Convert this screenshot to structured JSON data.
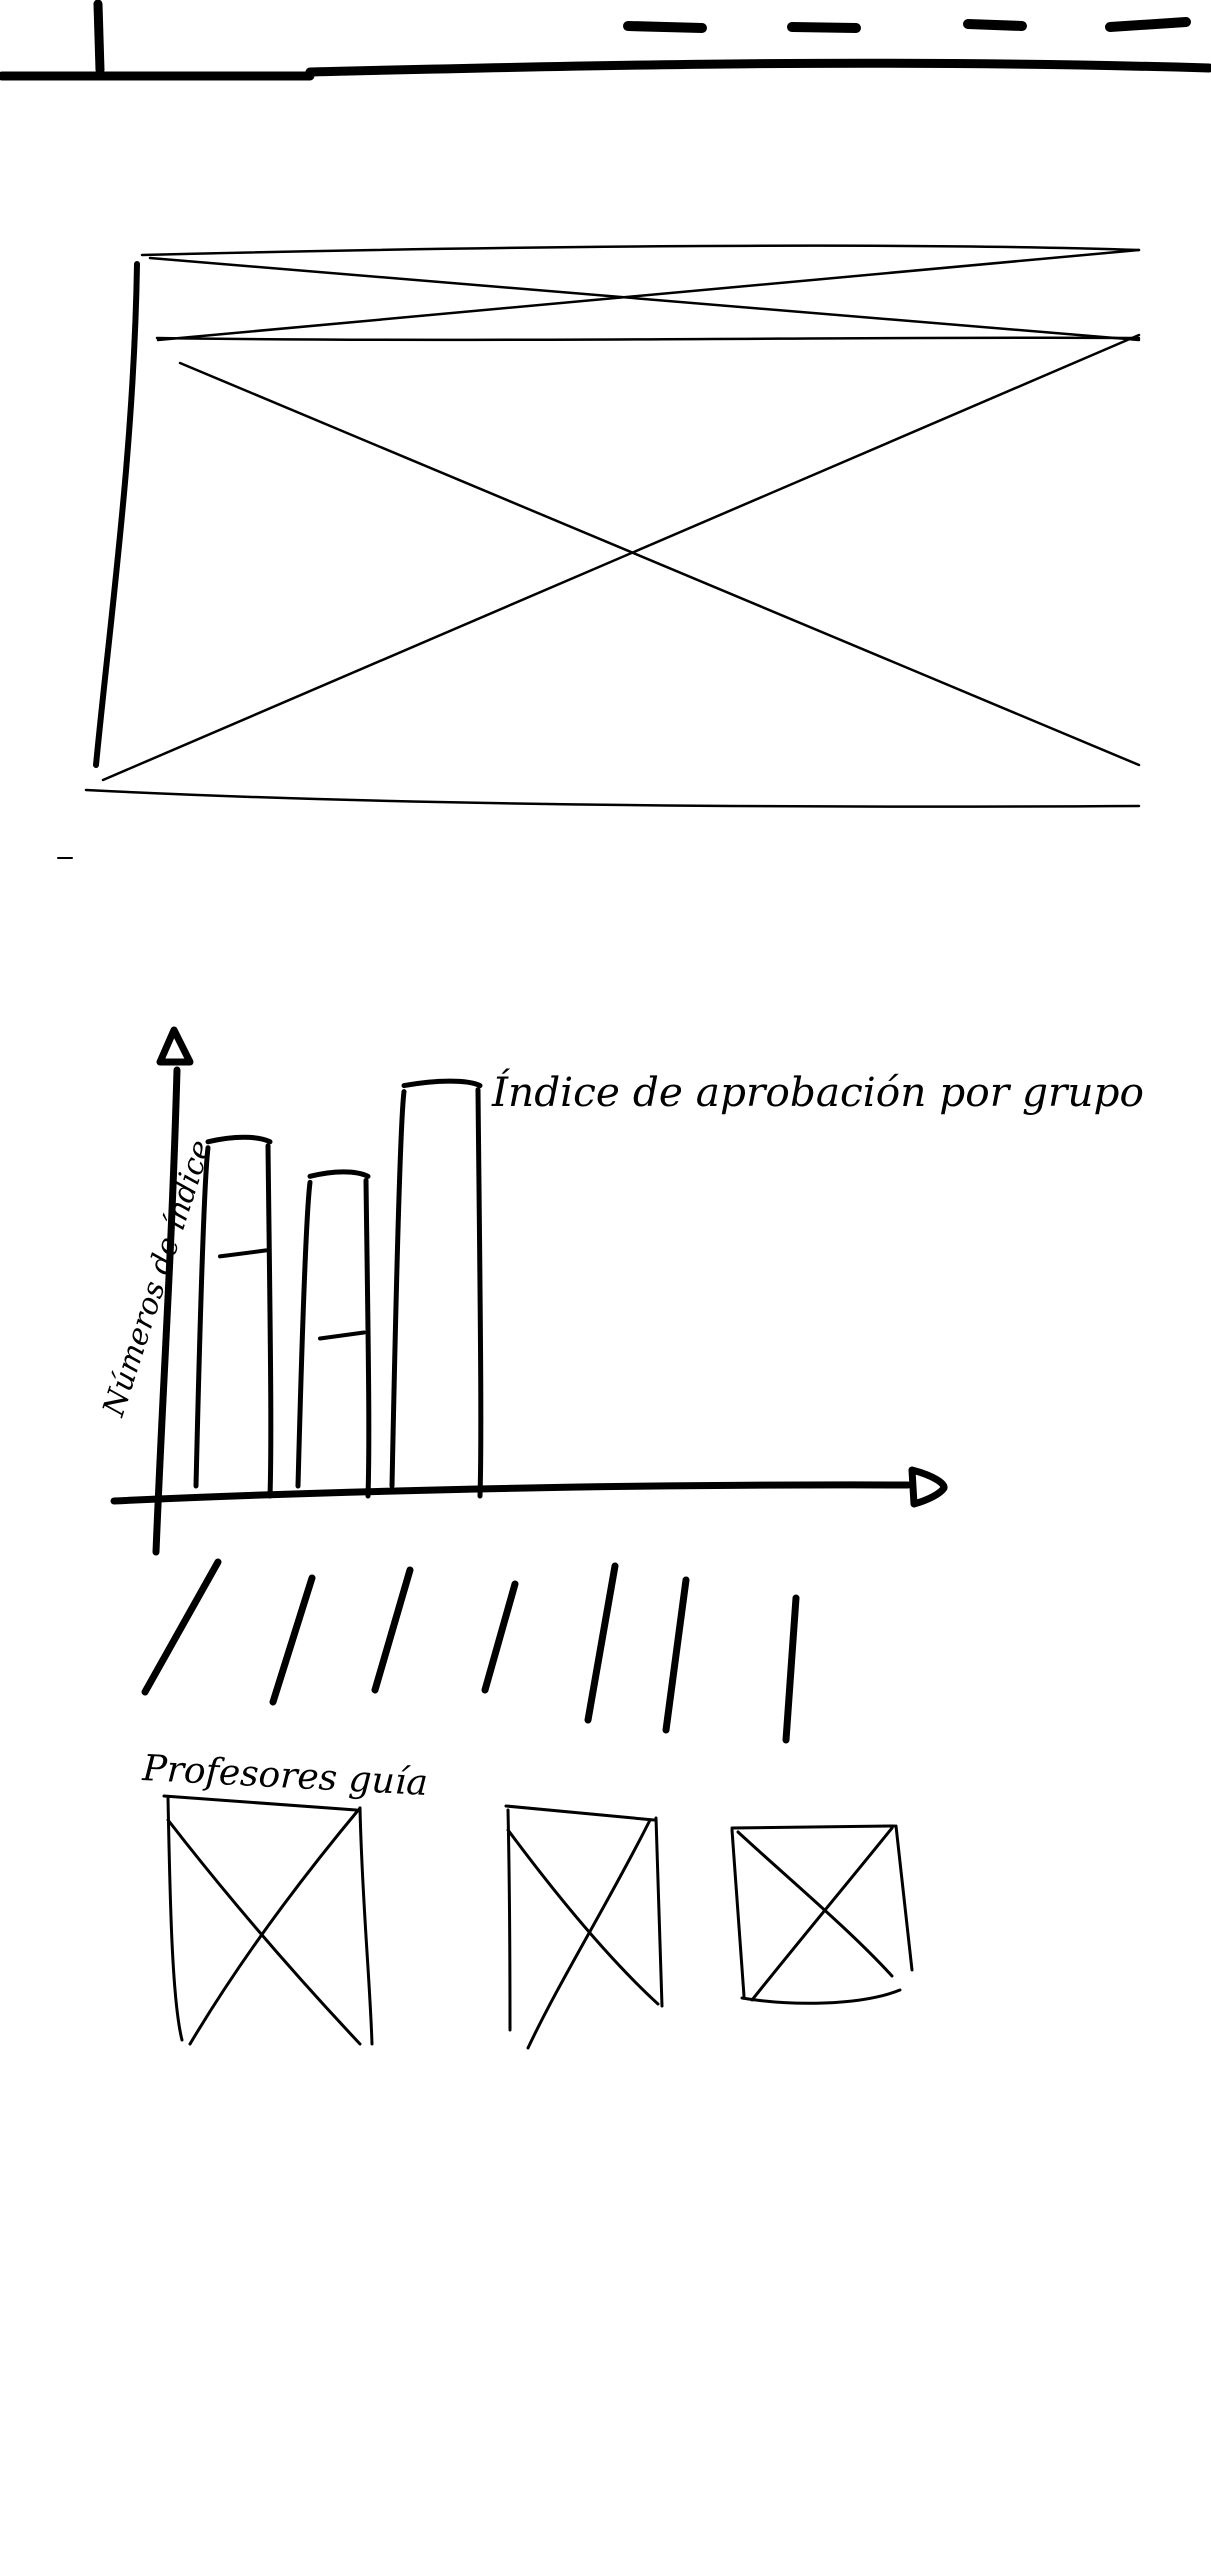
{
  "colors": {
    "ink": "#000000",
    "paper": "#ffffff"
  },
  "header": {
    "nav_items": [
      "nav-item-1",
      "nav-item-2",
      "nav-item-3",
      "nav-item-4"
    ]
  },
  "hero": {
    "placeholder": "image-placeholder"
  },
  "chart_data": {
    "type": "bar",
    "title": "Índice de aprobación por grupo",
    "xlabel": "",
    "ylabel": "Números de índice",
    "categories": [
      "",
      "",
      ""
    ],
    "series": [
      {
        "values": [
          0.82,
          0.74,
          0.95
        ]
      }
    ],
    "inner_marks": [
      0.55,
      0.36,
      null
    ],
    "ylim": [
      0,
      1
    ],
    "grid": false,
    "legend": "none"
  },
  "list": {
    "rows": 7
  },
  "teachers": {
    "heading": "Profesores guía",
    "cards": [
      "image-placeholder",
      "image-placeholder",
      "image-placeholder"
    ]
  }
}
